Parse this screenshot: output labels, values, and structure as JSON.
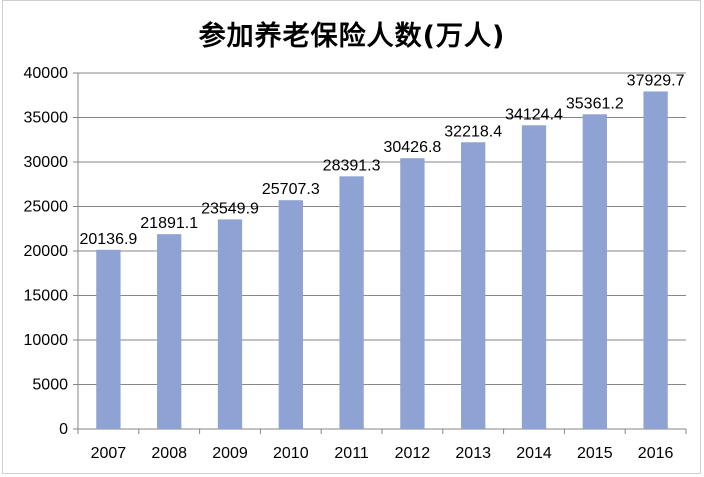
{
  "chart_data": {
    "type": "bar",
    "title": "参加养老保险人数(万人)",
    "categories": [
      "2007",
      "2008",
      "2009",
      "2010",
      "2011",
      "2012",
      "2013",
      "2014",
      "2015",
      "2016"
    ],
    "values": [
      20136.9,
      21891.1,
      23549.9,
      25707.3,
      28391.3,
      30426.8,
      32218.4,
      34124.4,
      35361.2,
      37929.7
    ],
    "value_labels": [
      "20136.9",
      "21891.1",
      "23549.9",
      "25707.3",
      "28391.3",
      "30426.8",
      "32218.4",
      "34124.4",
      "35361.2",
      "37929.7"
    ],
    "y_ticks": [
      "0",
      "5000",
      "10000",
      "15000",
      "20000",
      "25000",
      "30000",
      "35000",
      "40000"
    ],
    "ylim": [
      0,
      40000
    ],
    "grid": true,
    "legend": "none",
    "colors": {
      "bar": "#8FA2D4",
      "grid": "#868686"
    }
  }
}
